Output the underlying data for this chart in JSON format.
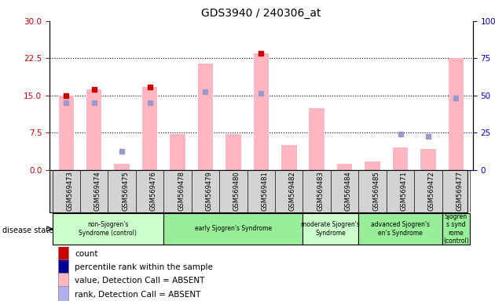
{
  "title": "GDS3940 / 240306_at",
  "samples": [
    "GSM569473",
    "GSM569474",
    "GSM569475",
    "GSM569476",
    "GSM569478",
    "GSM569479",
    "GSM569480",
    "GSM569481",
    "GSM569482",
    "GSM569483",
    "GSM569484",
    "GSM569485",
    "GSM569471",
    "GSM569472",
    "GSM569477"
  ],
  "bar_heights_pink": [
    15.0,
    16.2,
    1.2,
    16.8,
    7.2,
    21.5,
    7.2,
    23.5,
    5.0,
    12.5,
    1.2,
    1.8,
    4.5,
    4.2,
    22.5
  ],
  "blue_square_heights": [
    13.5,
    13.5,
    3.8,
    13.5,
    0.0,
    15.8,
    0.0,
    15.5,
    0.0,
    0.0,
    0.0,
    0.0,
    7.2,
    6.8,
    14.5
  ],
  "red_square_heights": [
    15.0,
    16.2,
    0.0,
    16.8,
    0.0,
    0.0,
    0.0,
    23.5,
    0.0,
    0.0,
    0.0,
    0.0,
    0.0,
    0.0,
    0.0
  ],
  "ylim_left": [
    0,
    30
  ],
  "ylim_right": [
    0,
    100
  ],
  "yticks_left": [
    0,
    7.5,
    15.0,
    22.5,
    30
  ],
  "yticks_right": [
    0,
    25,
    50,
    75,
    100
  ],
  "groups": [
    {
      "label": "non-Sjogren's\nSyndrome (control)",
      "start": 0,
      "end": 3,
      "color": "#ccffcc"
    },
    {
      "label": "early Sjogren's Syndrome",
      "start": 4,
      "end": 8,
      "color": "#99ee99"
    },
    {
      "label": "moderate Sjogren's\nSyndrome",
      "start": 9,
      "end": 10,
      "color": "#ccffcc"
    },
    {
      "label": "advanced Sjogren's\nen's Syndrome",
      "start": 11,
      "end": 13,
      "color": "#99ee99"
    },
    {
      "label": "Sjogren\ns synd\nrome\n(control)",
      "start": 14,
      "end": 14,
      "color": "#99ee99"
    }
  ],
  "legend_items": [
    {
      "label": "count",
      "color": "#cc0000"
    },
    {
      "label": "percentile rank within the sample",
      "color": "#000099"
    },
    {
      "label": "value, Detection Call = ABSENT",
      "color": "#ffb6c1"
    },
    {
      "label": "rank, Detection Call = ABSENT",
      "color": "#b0b0ee"
    }
  ],
  "bar_color_pink": "#ffb6c1",
  "blue_sq_color": "#9999cc",
  "red_sq_color": "#cc0000",
  "tick_color_left": "#cc0000",
  "tick_color_right": "#0000cc",
  "bg_color": "#d3d3d3",
  "disease_state_label": "disease state"
}
